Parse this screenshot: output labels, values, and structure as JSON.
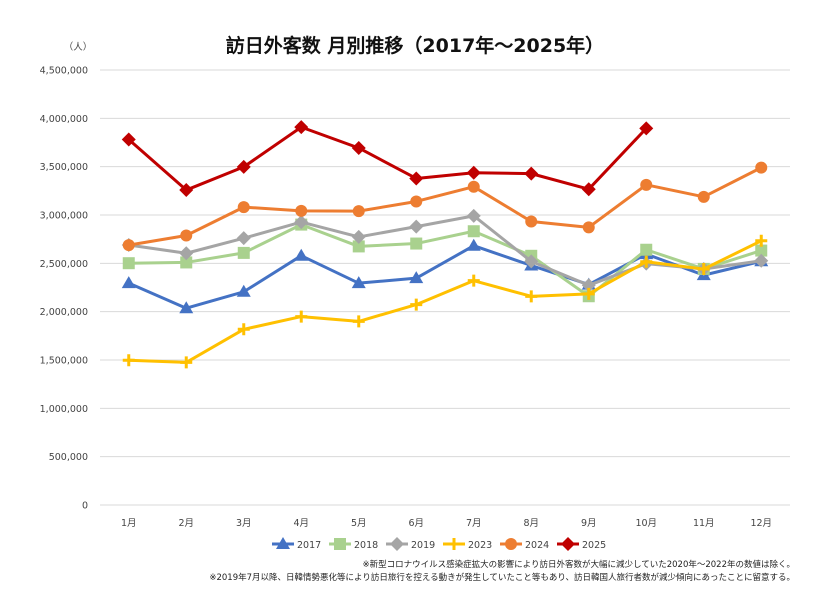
{
  "chart_data": {
    "type": "line",
    "title": "訪日外客数 月別推移（2017年～2025年）",
    "ylabel": "（人）",
    "ylim": [
      0,
      4500000
    ],
    "yticks": [
      "0",
      "500,000",
      "1,000,000",
      "1,500,000",
      "2,000,000",
      "2,500,000",
      "3,000,000",
      "3,500,000",
      "4,000,000",
      "4,500,000"
    ],
    "categories": [
      "1月",
      "2月",
      "3月",
      "4月",
      "5月",
      "6月",
      "7月",
      "8月",
      "9月",
      "10月",
      "11月",
      "12月"
    ],
    "grid": true,
    "legend_position": "bottom",
    "series": [
      {
        "name": "2017",
        "color": "#4472C4",
        "marker": "triangle",
        "values": [
          2295682,
          2035813,
          2205731,
          2578970,
          2294683,
          2346549,
          2682316,
          2477479,
          2280157,
          2595097,
          2378114,
          2521141
        ]
      },
      {
        "name": "2018",
        "color": "#A9D18E",
        "marker": "square",
        "values": [
          2501409,
          2509297,
          2607956,
          2900718,
          2675052,
          2704631,
          2832040,
          2578021,
          2159600,
          2640613,
          2442247,
          2632000
        ]
      },
      {
        "name": "2019",
        "color": "#A5A5A5",
        "marker": "diamond",
        "values": [
          2689339,
          2604322,
          2760136,
          2926685,
          2773091,
          2880041,
          2991189,
          2520134,
          2272883,
          2496568,
          2441274,
          2526387
        ]
      },
      {
        "name": "2023",
        "color": "#FFC000",
        "marker": "plus",
        "values": [
          1497300,
          1475300,
          1817500,
          1949100,
          1899200,
          2073300,
          2320600,
          2158500,
          2184300,
          2516500,
          2440800,
          2733000
        ]
      },
      {
        "name": "2024",
        "color": "#ED7D31",
        "marker": "circle",
        "values": [
          2688100,
          2788000,
          3081600,
          3042900,
          3040000,
          3140000,
          3292600,
          2933000,
          2872200,
          3312000,
          3188000,
          3490000
        ]
      },
      {
        "name": "2025",
        "color": "#C00000",
        "marker": "diamond",
        "values": [
          3781000,
          3258000,
          3497600,
          3908900,
          3693300,
          3377800,
          3437000,
          3428000,
          3267000,
          3896300,
          null,
          null
        ]
      }
    ],
    "notes": [
      "※新型コロナウイルス感染症拡大の影響により訪日外客数が大幅に減少していた2020年～2022年の数値は除く。",
      "※2019年7月以降、日韓情勢悪化等により訪日旅行を控える動きが発生していたこと等もあり、訪日韓国人旅行者数が減少傾向にあったことに留意する。"
    ]
  }
}
